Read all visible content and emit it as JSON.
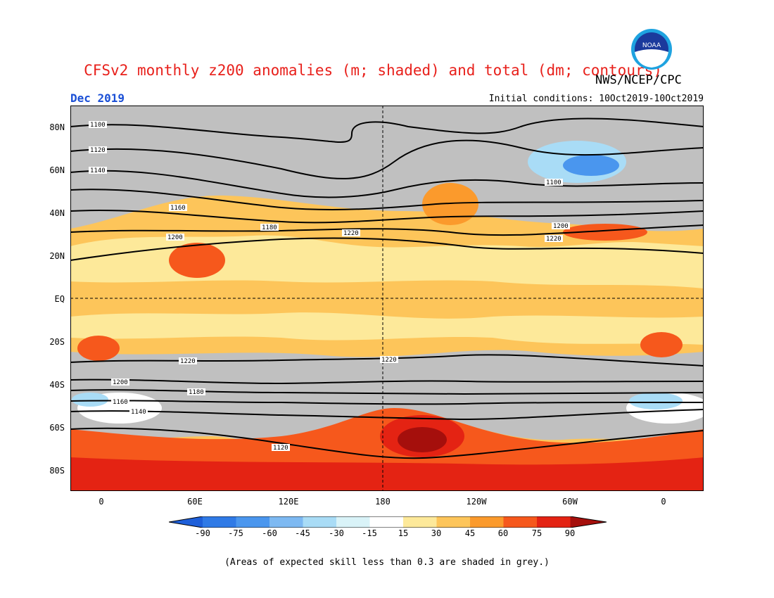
{
  "header": {
    "title": "CFSv2 monthly z200 anomalies (m; shaded) and total (dm; contours)",
    "agency": "NWS/NCEP/CPC",
    "month": "Dec 2019",
    "initial_conditions": "Initial conditions: 10Oct2019-10Oct2019",
    "logo_text": "NOAA"
  },
  "map": {
    "lat_labels": [
      "80N",
      "60N",
      "40N",
      "20N",
      "EQ",
      "20S",
      "40S",
      "60S",
      "80S"
    ],
    "lon_labels": [
      "0",
      "60E",
      "120E",
      "180",
      "120W",
      "60W",
      "0"
    ],
    "contour_labels": [
      "1100",
      "1120",
      "1140",
      "1160",
      "1180",
      "1200",
      "1220"
    ]
  },
  "colorbar": {
    "ticks": [
      "-90",
      "-75",
      "-60",
      "-45",
      "-30",
      "-15",
      "15",
      "30",
      "45",
      "60",
      "75",
      "90"
    ],
    "colors": [
      "#1e5fd9",
      "#2f7ae6",
      "#4a96ee",
      "#7db9f2",
      "#a9dcf6",
      "#d9f3f8",
      "#ffffff",
      "#fde99a",
      "#fdc55a",
      "#fb9a2c",
      "#f6581c",
      "#e42313",
      "#a50f0c"
    ]
  },
  "note": "(Areas of expected skill less than 0.3 are shaded in grey.)"
}
